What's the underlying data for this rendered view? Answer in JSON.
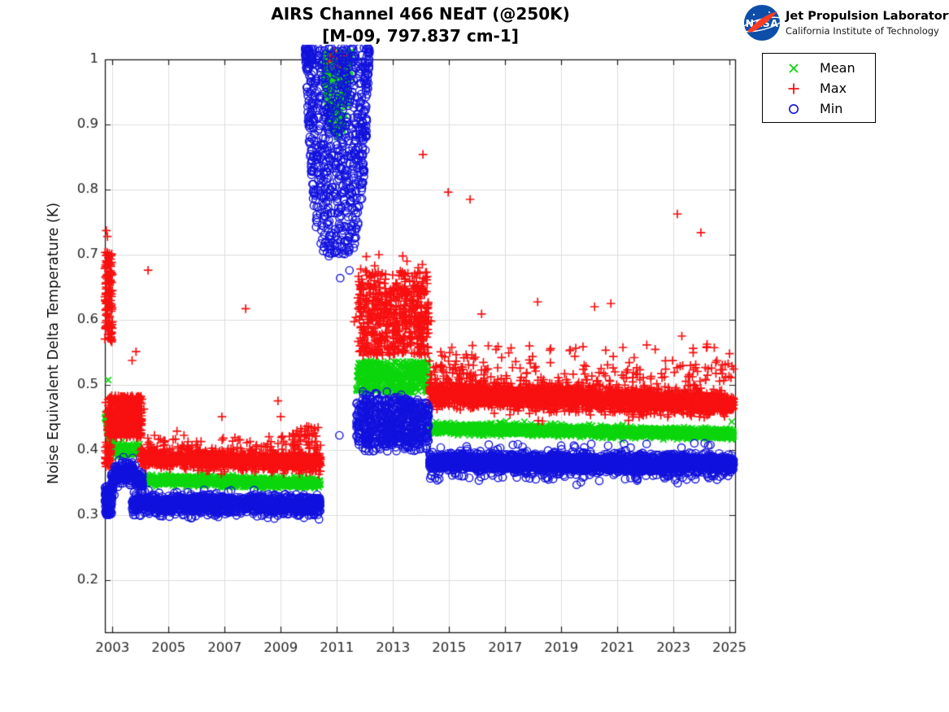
{
  "header": {
    "title_line1": "AIRS Channel 466 NEdT (@250K)",
    "title_line2": "[M-09, 797.837 cm-1]",
    "logo": {
      "org": "NASA",
      "name_line1": "Jet Propulsion Laboratory",
      "name_line2": "California Institute of Technology",
      "meatball_blue": "#0d4ea8",
      "swoosh_red": "#fc3d21"
    }
  },
  "chart_data": {
    "type": "scatter",
    "title": "AIRS Channel 466 NEdT (@250K)",
    "subtitle": "[M-09, 797.837 cm-1]",
    "xlabel": "",
    "ylabel": "Noise Equivalent Delta Temperature (K)",
    "xlim": [
      2002.73,
      2025.2
    ],
    "ylim": [
      0.12,
      1.0
    ],
    "xticks": {
      "values": [
        2003,
        2005,
        2007,
        2009,
        2011,
        2013,
        2015,
        2017,
        2019,
        2021,
        2023,
        2025
      ],
      "labels": [
        "2003",
        "2005",
        "2007",
        "2009",
        "2011",
        "2013",
        "2015",
        "2017",
        "2019",
        "2021",
        "2023",
        "2025"
      ]
    },
    "yticks": {
      "values": [
        0.2,
        0.3,
        0.4,
        0.5,
        0.6,
        0.7,
        0.8,
        0.9,
        1.0
      ],
      "labels": [
        "0.2",
        "0.3",
        "0.4",
        "0.5",
        "0.6",
        "0.7",
        "0.8",
        "0.9",
        "1"
      ]
    },
    "grid": true,
    "grid_color": "#dcdcdc",
    "axis_color": "#1a1a1a",
    "tick_label_color": "#262626",
    "legend": {
      "position": "top-right-outside",
      "entries": [
        {
          "label": "Mean",
          "marker": "x",
          "color": "#0cd60c"
        },
        {
          "label": "Max",
          "marker": "+",
          "color": "#f81010"
        },
        {
          "label": "Min",
          "marker": "o",
          "color": "#1212de"
        }
      ]
    },
    "seed": 1234567,
    "series_note": "bands=[x0,x1,center0,center1,gauss_sd,n]; boxes=[x0,x1,y0,y1,n]; funnels=[x0,x1,cx,halfwidth,top,tip,power,n]; points=[x,y]",
    "series": [
      {
        "name": "Mean",
        "marker": "x",
        "color": "#0cd60c",
        "boxes": [
          [
            2011.7,
            2014.28,
            0.4875,
            0.5365,
            500
          ]
        ],
        "bands": [
          [
            2002.73,
            2003.0,
            0.455,
            0.408,
            0.006,
            55
          ],
          [
            2002.95,
            2003.97,
            0.4,
            0.4,
            0.0042,
            310
          ],
          [
            2003.92,
            2010.42,
            0.3545,
            0.349,
            0.0035,
            1450
          ],
          [
            2014.3,
            2025.15,
            0.4335,
            0.4245,
            0.0035,
            2700
          ]
        ],
        "funnels": [
          [
            2010.52,
            2011.55,
            2011.0,
            0.52,
            1.012,
            0.878,
            3,
            290
          ]
        ],
        "points": [
          [
            2002.85,
            0.5075
          ],
          [
            2017.03,
            0.444
          ],
          [
            2025.08,
            0.4435
          ]
        ]
      },
      {
        "name": "Max",
        "marker": "+",
        "color": "#f81010",
        "boxes": [
          [
            2002.73,
            2003.0,
            0.565,
            0.705,
            130
          ],
          [
            2002.73,
            2002.95,
            0.374,
            0.413,
            40
          ],
          [
            2002.82,
            2004.05,
            0.419,
            0.4835,
            420
          ],
          [
            2004.0,
            2010.42,
            0.398,
            0.422,
            70
          ],
          [
            2009.4,
            2010.42,
            0.4,
            0.437,
            30
          ],
          [
            2011.75,
            2014.28,
            0.545,
            0.655,
            560
          ],
          [
            2011.75,
            2014.28,
            0.655,
            0.676,
            55
          ],
          [
            2014.3,
            2025.15,
            0.505,
            0.532,
            120
          ],
          [
            2014.3,
            2025.15,
            0.532,
            0.562,
            40
          ],
          [
            2014.3,
            2015.7,
            0.515,
            0.547,
            28
          ]
        ],
        "bands": [
          [
            2004.0,
            2010.42,
            0.388,
            0.381,
            0.0068,
            1300
          ],
          [
            2014.3,
            2025.15,
            0.4865,
            0.4715,
            0.0092,
            2700
          ]
        ],
        "funnels": [],
        "points": [
          [
            2002.78,
            0.737
          ],
          [
            2002.82,
            0.728
          ],
          [
            2002.76,
            0.473
          ],
          [
            2002.79,
            0.458
          ],
          [
            2003.7,
            0.5375
          ],
          [
            2003.84,
            0.551
          ],
          [
            2004.27,
            0.676
          ],
          [
            2007.75,
            0.617
          ],
          [
            2004.5,
            0.4225
          ],
          [
            2005.3,
            0.429
          ],
          [
            2005.55,
            0.4225
          ],
          [
            2006.9,
            0.451
          ],
          [
            2008.9,
            0.4755
          ],
          [
            2009.0,
            0.451
          ],
          [
            2010.2,
            0.4335
          ],
          [
            2010.33,
            0.4345
          ],
          [
            2004.05,
            0.478
          ],
          [
            2004.12,
            0.463
          ],
          [
            2010.7,
            0.997
          ],
          [
            2010.78,
            1.004
          ],
          [
            2010.9,
            1.012
          ],
          [
            2010.98,
            0.988
          ],
          [
            2011.08,
            1.002
          ],
          [
            2011.18,
            0.992
          ],
          [
            2011.3,
            1.006
          ],
          [
            2011.62,
            0.597
          ],
          [
            2011.68,
            0.604
          ],
          [
            2012.05,
            0.697
          ],
          [
            2012.5,
            0.7
          ],
          [
            2013.35,
            0.698
          ],
          [
            2013.5,
            0.69
          ],
          [
            2012.35,
            0.683
          ],
          [
            2014.05,
            0.685
          ],
          [
            2011.85,
            0.678
          ],
          [
            2013.9,
            0.68
          ],
          [
            2014.07,
            0.854
          ],
          [
            2014.97,
            0.796
          ],
          [
            2015.75,
            0.785
          ],
          [
            2023.14,
            0.7625
          ],
          [
            2023.98,
            0.734
          ],
          [
            2018.16,
            0.6275
          ],
          [
            2020.19,
            0.62
          ],
          [
            2020.77,
            0.625
          ],
          [
            2016.16,
            0.609
          ],
          [
            2014.36,
            0.598
          ],
          [
            2023.3,
            0.575
          ],
          [
            2015.1,
            0.5575
          ],
          [
            2021.2,
            0.5575
          ],
          [
            2024.2,
            0.5625
          ],
          [
            2016.4,
            0.56
          ],
          [
            2019.3,
            0.5525
          ],
          [
            2022.35,
            0.5545
          ],
          [
            2025.0,
            0.548
          ],
          [
            2024.55,
            0.5375
          ],
          [
            2024.95,
            0.5325
          ]
        ]
      },
      {
        "name": "Min",
        "marker": "o",
        "color": "#1212de",
        "boxes": [
          [
            2002.73,
            2003.0,
            0.3,
            0.345,
            110
          ],
          [
            2011.7,
            2014.28,
            0.408,
            0.479,
            620
          ],
          [
            2011.78,
            2013.4,
            0.479,
            0.492,
            14
          ],
          [
            2011.9,
            2014.25,
            0.398,
            0.408,
            30
          ],
          [
            2014.35,
            2025.1,
            0.3525,
            0.3625,
            55
          ],
          [
            2014.4,
            2025.0,
            0.4035,
            0.411,
            20
          ]
        ],
        "bands": [
          [
            2002.95,
            2003.25,
            0.35,
            0.366,
            0.0075,
            90
          ],
          [
            2003.25,
            2003.75,
            0.366,
            0.366,
            0.0075,
            140
          ],
          [
            2003.75,
            2004.08,
            0.366,
            0.348,
            0.0075,
            90
          ],
          [
            2003.7,
            2010.42,
            0.317,
            0.3155,
            0.0072,
            1450
          ],
          [
            2014.3,
            2025.15,
            0.3815,
            0.3785,
            0.0068,
            2700
          ]
        ],
        "funnels": [
          [
            2009.87,
            2012.17,
            2011.02,
            1.15,
            1.018,
            0.697,
            5,
            780
          ]
        ],
        "points": [
          [
            2011.12,
            0.664
          ],
          [
            2011.28,
            0.701
          ],
          [
            2011.0,
            0.706
          ],
          [
            2011.45,
            0.676
          ],
          [
            2011.09,
            0.4225
          ],
          [
            2013.5,
            0.406
          ],
          [
            2019.55,
            0.3465
          ],
          [
            2019.7,
            0.3505
          ],
          [
            2023.15,
            0.349
          ],
          [
            2014.5,
            0.357
          ],
          [
            2014.65,
            0.3555
          ]
        ]
      }
    ]
  }
}
